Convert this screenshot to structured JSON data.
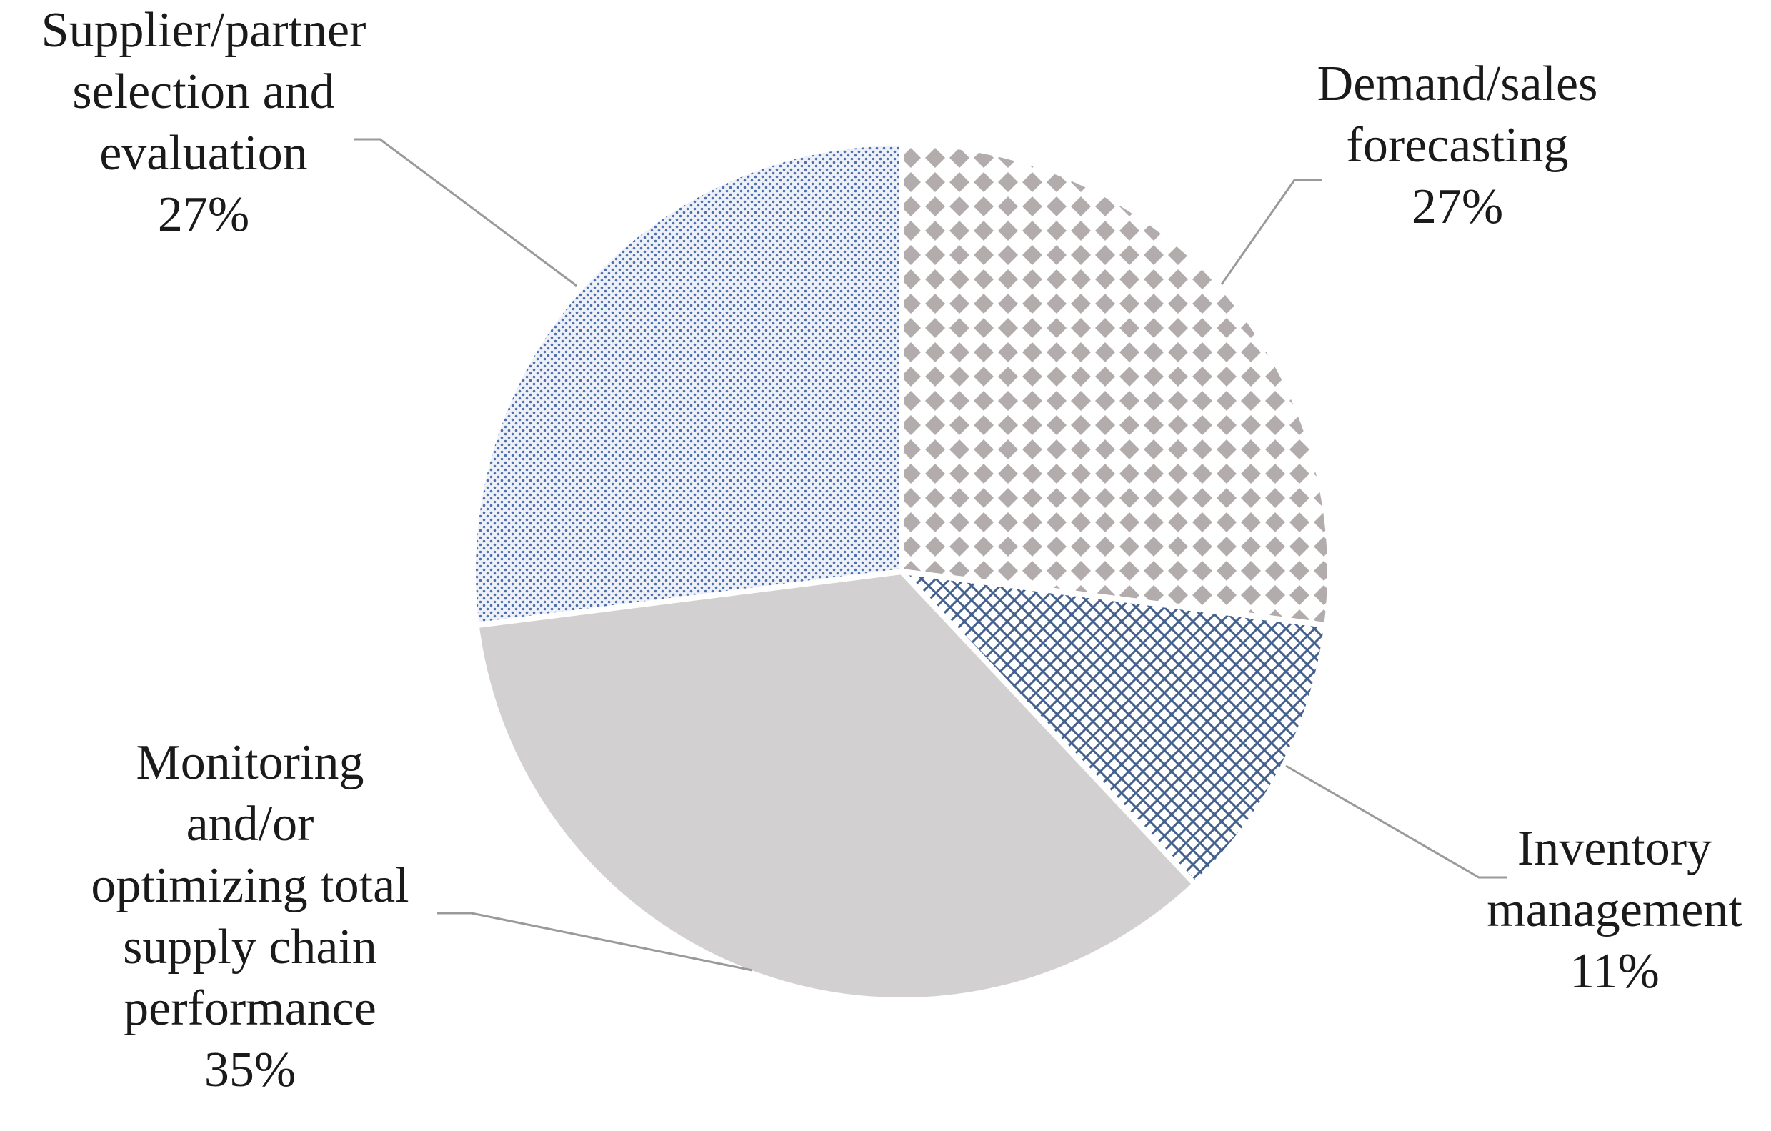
{
  "chart_data": {
    "type": "pie",
    "title": "",
    "slices": [
      {
        "label_lines": [
          "Demand/sales",
          "forecasting"
        ],
        "value": 27,
        "value_label": "27%",
        "pattern": "diamond-gray"
      },
      {
        "label_lines": [
          "Inventory",
          "management"
        ],
        "value": 11,
        "value_label": "11%",
        "pattern": "crosshatch-blue"
      },
      {
        "label_lines": [
          "Monitoring",
          "and/or",
          "optimizing total",
          "supply chain",
          "performance"
        ],
        "value": 35,
        "value_label": "35%",
        "pattern": "solid-gray"
      },
      {
        "label_lines": [
          "Supplier/partner",
          "selection and",
          "evaluation"
        ],
        "value": 27,
        "value_label": "27%",
        "pattern": "dotted-blue"
      }
    ],
    "start_angle_deg": 0,
    "direction": "clockwise",
    "legend": "none",
    "colors": {
      "diamond_gray": "#b3acac",
      "crosshatch_blue": "#44608f",
      "solid_gray": "#d3d0d1",
      "dotted_blue": "#4e6fae",
      "leader_line": "#9a9a9a"
    }
  }
}
